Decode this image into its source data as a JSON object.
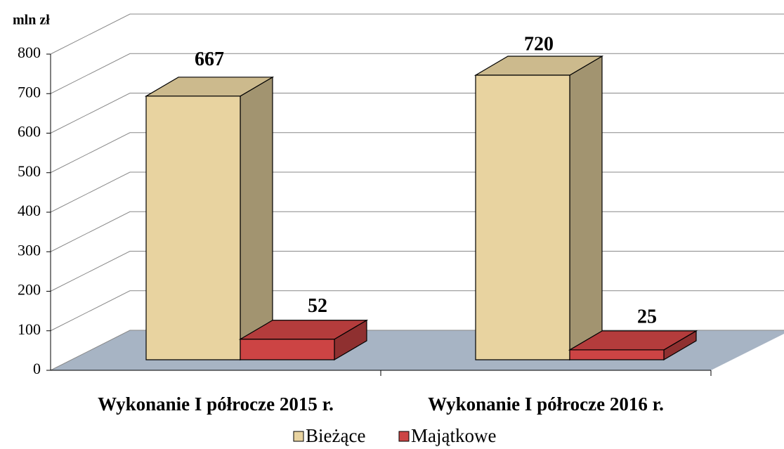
{
  "chart_data": {
    "type": "bar3d",
    "ylabel": "mln zł",
    "categories": [
      "Wykonanie I półrocze 2015 r.",
      "Wykonanie I półrocze 2016 r."
    ],
    "series": [
      {
        "name": "Bieżące",
        "color": "#e8d3a0",
        "values": [
          667,
          720
        ]
      },
      {
        "name": "Majątkowe",
        "color": "#cc4444",
        "values": [
          52,
          25
        ]
      }
    ],
    "ylim": [
      0,
      800
    ],
    "yticks": [
      0,
      100,
      200,
      300,
      400,
      500,
      600,
      700,
      800
    ],
    "grid": true
  }
}
